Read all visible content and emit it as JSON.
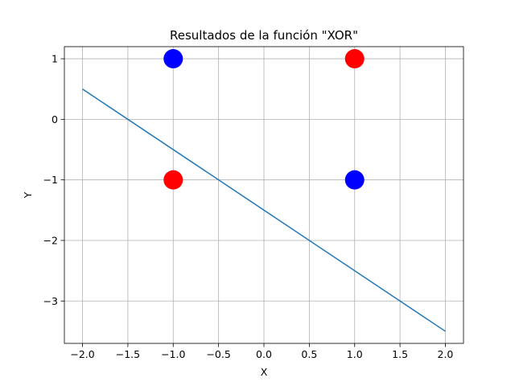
{
  "chart_data": {
    "type": "scatter",
    "title": "Resultados de la función \"XOR\"",
    "xlabel": "X",
    "ylabel": "Y",
    "xlim": [
      -2.2,
      2.2
    ],
    "ylim": [
      -3.7,
      1.2
    ],
    "xticks": [
      -2.0,
      -1.5,
      -1.0,
      -0.5,
      0.0,
      0.5,
      1.0,
      1.5,
      2.0
    ],
    "xtick_labels": [
      "−2.0",
      "−1.5",
      "−1.0",
      "−0.5",
      "0.0",
      "0.5",
      "1.0",
      "1.5",
      "2.0"
    ],
    "yticks": [
      -3,
      -2,
      -1,
      0,
      1
    ],
    "ytick_labels": [
      "−3",
      "−2",
      "−1",
      "0",
      "1"
    ],
    "grid": true,
    "points": [
      {
        "x": -1,
        "y": 1,
        "color": "#0000ff"
      },
      {
        "x": 1,
        "y": 1,
        "color": "#ff0000"
      },
      {
        "x": -1,
        "y": -1,
        "color": "#ff0000"
      },
      {
        "x": 1,
        "y": -1,
        "color": "#0000ff"
      }
    ],
    "line": {
      "x": [
        -2.0,
        2.0
      ],
      "y": [
        0.5,
        -3.5
      ],
      "color": "#1f77b4"
    },
    "grid_color": "#b0b0b0"
  }
}
